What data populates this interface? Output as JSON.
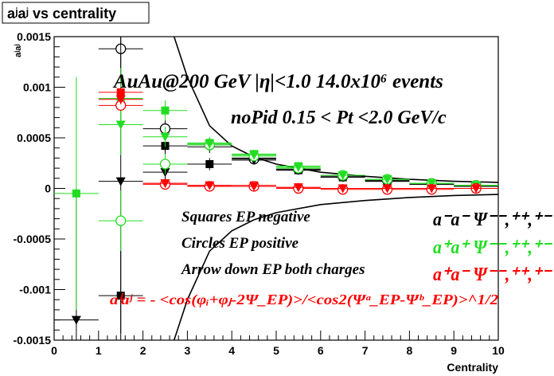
{
  "chart_data": {
    "type": "scatter",
    "title": "aʲaʲ vs centrality",
    "ylabel": "aʲaʲ",
    "xlabel": "Centrality",
    "xlim": [
      0,
      10
    ],
    "ylim": [
      -0.0015,
      0.0015
    ],
    "x_ticks": [
      "0",
      "1",
      "2",
      "3",
      "4",
      "5",
      "6",
      "7",
      "8",
      "9",
      "10"
    ],
    "y_ticks": [
      "-0.0015",
      "-0.001",
      "-0.0005",
      "0",
      "0.0005",
      "0.001",
      "0.0015"
    ],
    "annotations": {
      "line1": "AuAu@200 GeV |η|<1.0 14.0x10⁶ events",
      "line2": "noPid 0.15 < Pt <2.0 GeV/c",
      "legend_squares": "Squares EP negative",
      "legend_circles": "Circles EP positive",
      "legend_arrows": "Arrow down EP both charges",
      "formula": "aⁱaʲ = - <cos(φᵢ+φⱼ-2Ψ_EP)>/<cos2(Ψᵃ_EP-Ψᵇ_EP)>^1/2",
      "charge_mm": "a⁻a⁻  Ψ⁻⁻,⁺⁺,⁺⁻",
      "charge_pp": "a⁺a⁺  Ψ⁻⁻,⁺⁺,⁺⁻",
      "charge_pm": "a⁺a⁻  Ψ⁻⁻,⁺⁺,⁺⁻"
    },
    "colors": {
      "black": "#000000",
      "green": "#22dd22",
      "red": "#ff0000"
    },
    "series": [
      {
        "color": "black",
        "marker": "square",
        "x": [
          1.5,
          2.5,
          3.5,
          4.5,
          5.5,
          6.5,
          7.5,
          8.5,
          9.5
        ],
        "y": [
          -0.00106,
          0.00042,
          0.00024,
          0.0003,
          0.00018,
          0.00011,
          7e-05,
          4e-05,
          2e-05
        ],
        "err": [
          0.00045,
          0.0001,
          6e-05,
          4e-05,
          3e-05,
          3e-05,
          2e-05,
          2e-05,
          2e-05
        ]
      },
      {
        "color": "black",
        "marker": "circle",
        "x": [
          1.5,
          2.5,
          3.5,
          4.5,
          5.5,
          6.5,
          7.5,
          8.5,
          9.5
        ],
        "y": [
          0.00138,
          0.00059,
          0.00043,
          0.00029,
          0.00019,
          0.00012,
          8e-05,
          5e-05,
          3e-05
        ],
        "err": [
          0.0003,
          0.0001,
          6e-05,
          4e-05,
          3e-05,
          3e-05,
          2e-05,
          2e-05,
          2e-05
        ]
      },
      {
        "color": "black",
        "marker": "triangle-down",
        "x": [
          0.5,
          1.5,
          2.5,
          3.5,
          4.5,
          5.5,
          6.5,
          7.5,
          8.5,
          9.5
        ],
        "y": [
          -0.0013,
          7e-05,
          0.00016,
          0.00041,
          0.00028,
          0.00018,
          0.00011,
          7e-05,
          4e-05,
          2e-05
        ],
        "err": [
          0.0013,
          0.0015,
          0.0001,
          6e-05,
          4e-05,
          3e-05,
          3e-05,
          2e-05,
          2e-05,
          2e-05
        ]
      },
      {
        "color": "green",
        "marker": "square",
        "x": [
          0.5,
          1.5,
          2.5,
          3.5,
          4.5,
          5.5,
          6.5,
          7.5,
          8.5,
          9.5
        ],
        "y": [
          -5e-05,
          0.00089,
          0.00077,
          0.00045,
          0.00034,
          0.00022,
          0.00013,
          9e-05,
          5e-05,
          3e-05
        ],
        "err": [
          0.00115,
          0.0003,
          0.0001,
          6e-05,
          4e-05,
          3e-05,
          3e-05,
          2e-05,
          2e-05,
          2e-05
        ]
      },
      {
        "color": "green",
        "marker": "circle",
        "x": [
          1.5,
          2.5,
          3.5,
          4.5,
          5.5,
          6.5,
          7.5,
          8.5,
          9.5
        ],
        "y": [
          -0.00032,
          0.00024,
          0.00043,
          0.00032,
          0.0002,
          0.00013,
          9e-05,
          5e-05,
          3e-05
        ],
        "err": [
          0.0003,
          0.0001,
          6e-05,
          4e-05,
          3e-05,
          3e-05,
          2e-05,
          2e-05,
          2e-05
        ]
      },
      {
        "color": "green",
        "marker": "triangle-down",
        "x": [
          1.5,
          2.5,
          3.5,
          4.5,
          5.5,
          6.5,
          7.5,
          8.5,
          9.5
        ],
        "y": [
          0.00063,
          0.00051,
          0.00044,
          0.00033,
          0.00021,
          0.00013,
          9e-05,
          5e-05,
          3e-05
        ],
        "err": [
          0.0003,
          0.0001,
          6e-05,
          4e-05,
          3e-05,
          3e-05,
          2e-05,
          2e-05,
          2e-05
        ]
      },
      {
        "color": "red",
        "marker": "square",
        "x": [
          1.5,
          2.5,
          3.5,
          4.5,
          5.5,
          6.5,
          7.5,
          8.5,
          9.5
        ],
        "y": [
          0.00095,
          5e-05,
          3e-05,
          3e-05,
          1e-05,
          0.0,
          0.0,
          0.0,
          0.0
        ],
        "err": [
          5e-05,
          4e-05,
          3e-05,
          2e-05,
          2e-05,
          2e-05,
          2e-05,
          2e-05,
          2e-05
        ]
      },
      {
        "color": "red",
        "marker": "circle",
        "x": [
          1.5,
          2.5,
          3.5,
          4.5,
          5.5,
          6.5,
          7.5,
          8.5,
          9.5
        ],
        "y": [
          0.00082,
          4e-05,
          2e-05,
          2e-05,
          0.0,
          -1e-05,
          -1e-05,
          -1e-05,
          0.0
        ],
        "err": [
          5e-05,
          4e-05,
          3e-05,
          2e-05,
          2e-05,
          2e-05,
          2e-05,
          2e-05,
          2e-05
        ]
      },
      {
        "color": "red",
        "marker": "triangle-down",
        "x": [
          1.5,
          2.5,
          3.5,
          4.5,
          5.5,
          6.5,
          7.5,
          8.5,
          9.5
        ],
        "y": [
          0.00088,
          5e-05,
          3e-05,
          2e-05,
          1e-05,
          0.0,
          0.0,
          0.0,
          0.0
        ],
        "err": [
          5e-05,
          4e-05,
          3e-05,
          2e-05,
          2e-05,
          2e-05,
          2e-05,
          2e-05,
          2e-05
        ]
      }
    ],
    "curves": [
      {
        "color": "black",
        "x": [
          2.7,
          3.0,
          3.5,
          4.0,
          4.5,
          5.0,
          6.0,
          7.0,
          8.0,
          9.0,
          10.0
        ],
        "y": [
          0.0016,
          0.0011,
          0.00062,
          0.00042,
          0.00031,
          0.00024,
          0.00016,
          0.00012,
          9e-05,
          7e-05,
          6e-05
        ]
      },
      {
        "color": "black",
        "x": [
          2.7,
          3.0,
          3.5,
          4.0,
          4.5,
          5.0,
          6.0,
          7.0,
          8.0,
          9.0,
          10.0
        ],
        "y": [
          -0.0016,
          -0.0011,
          -0.00062,
          -0.00042,
          -0.00031,
          -0.00024,
          -0.00016,
          -0.00012,
          -9e-05,
          -7e-05,
          -6e-05
        ]
      }
    ]
  }
}
